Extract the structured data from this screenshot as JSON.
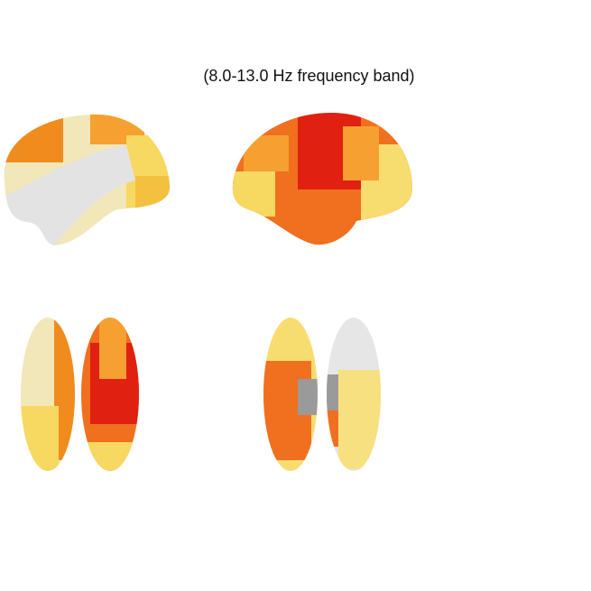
{
  "title": "(8.0-13.0 Hz frequency band)"
}
